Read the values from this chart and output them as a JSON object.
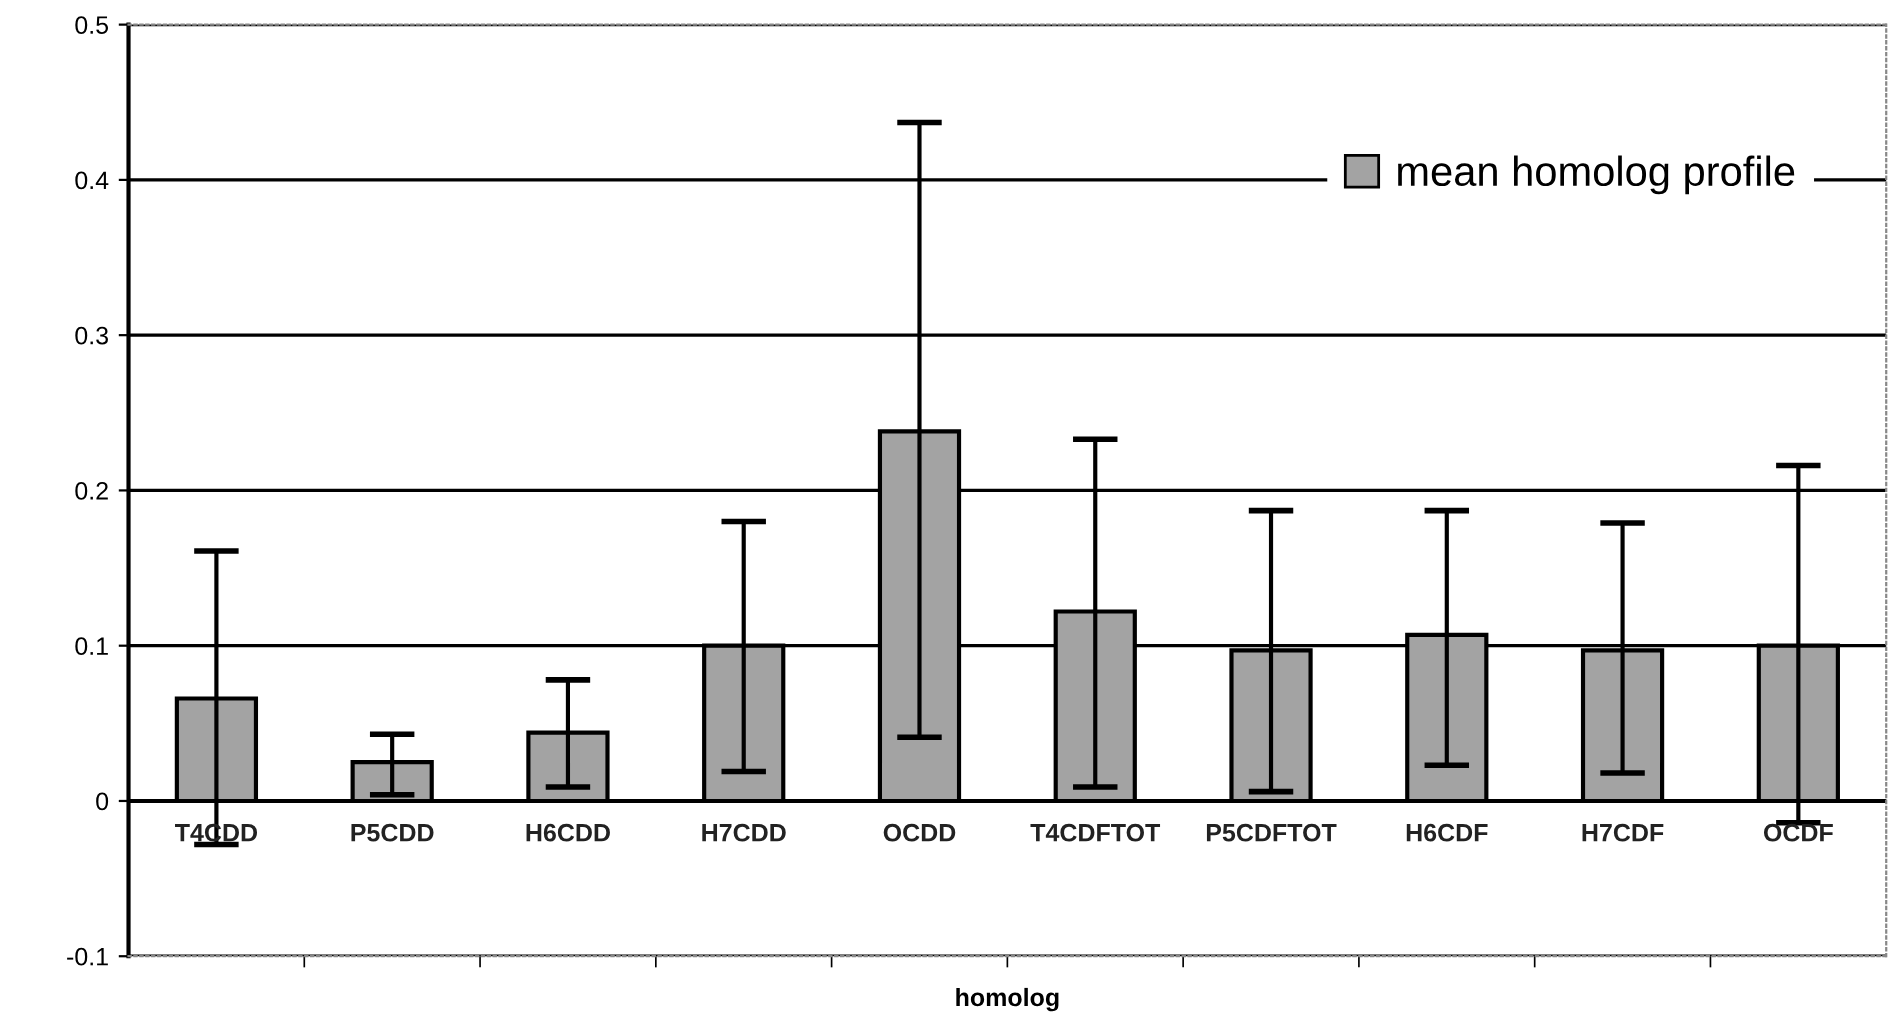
{
  "chart_data": {
    "type": "bar",
    "xlabel": "homolog",
    "categories": [
      "T4CDD",
      "P5CDD",
      "H6CDD",
      "H7CDD",
      "OCDD",
      "T4CDFTOT",
      "P5CDFTOT",
      "H6CDF",
      "H7CDF",
      "OCDF"
    ],
    "series": [
      {
        "name": "mean homolog profile",
        "color": "#a3a3a3",
        "values": [
          0.066,
          0.025,
          0.044,
          0.1,
          0.238,
          0.122,
          0.097,
          0.107,
          0.097,
          0.1
        ],
        "errors": [
          [
            -0.028,
            0.161
          ],
          [
            0.004,
            0.043
          ],
          [
            0.009,
            0.078
          ],
          [
            0.019,
            0.18
          ],
          [
            0.041,
            0.437
          ],
          [
            0.009,
            0.233
          ],
          [
            0.006,
            0.187
          ],
          [
            0.023,
            0.187
          ],
          [
            0.018,
            0.179
          ],
          [
            -0.014,
            0.216
          ]
        ]
      }
    ],
    "ylim": [
      -0.1,
      0.5
    ],
    "yticks": [
      -0.1,
      0,
      0.1,
      0.2,
      0.3,
      0.4,
      0.5
    ],
    "grid": "y",
    "legend": "top right"
  }
}
